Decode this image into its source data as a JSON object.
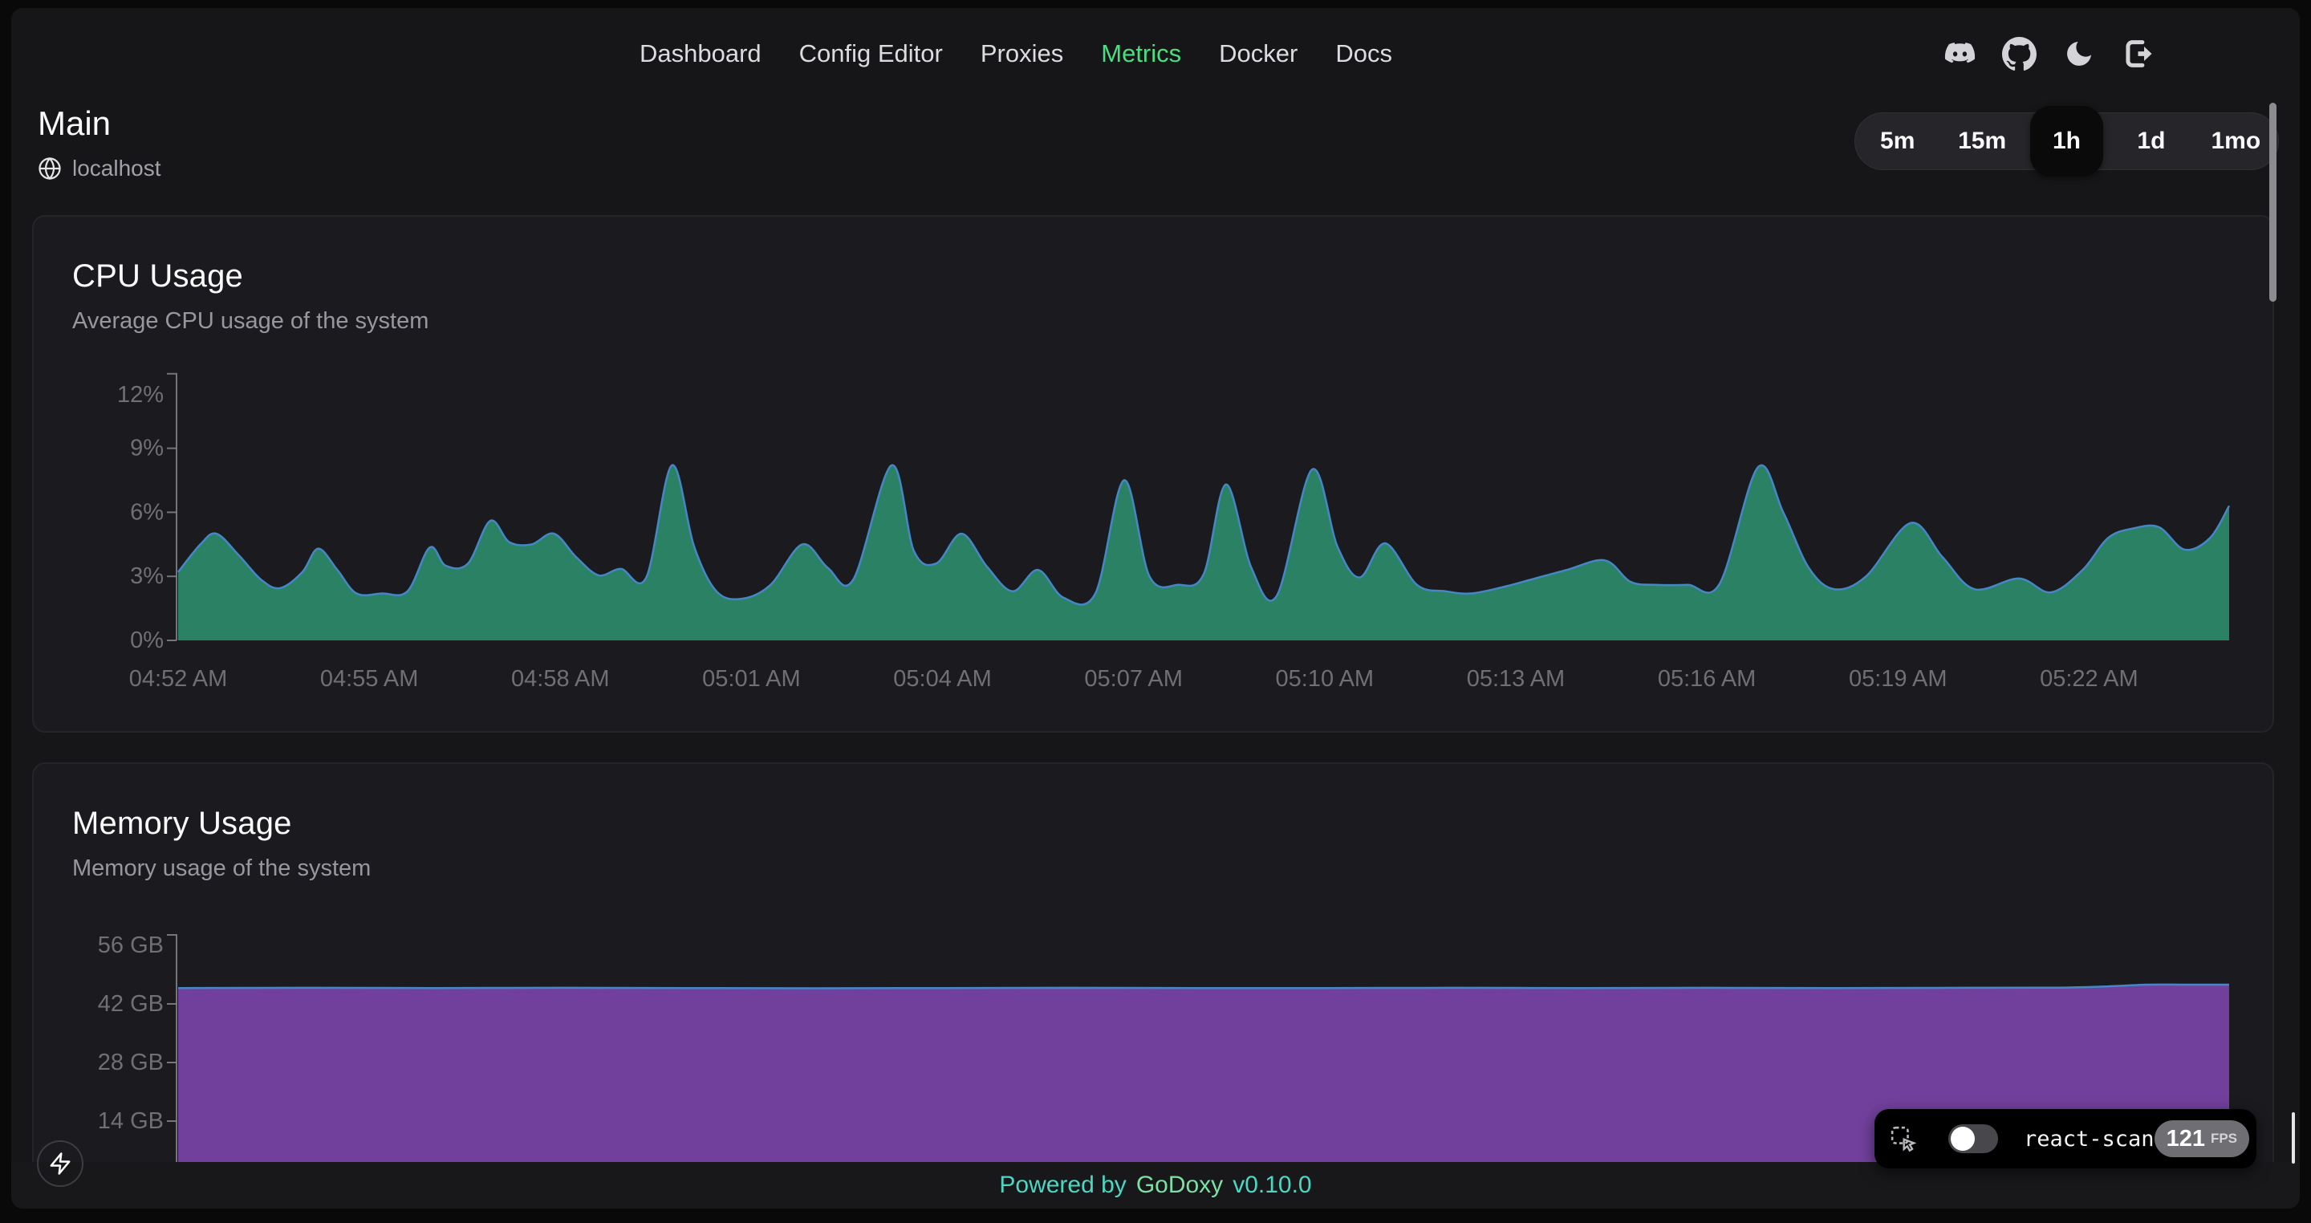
{
  "nav": {
    "items": [
      {
        "label": "Dashboard",
        "active": false
      },
      {
        "label": "Config Editor",
        "active": false
      },
      {
        "label": "Proxies",
        "active": false
      },
      {
        "label": "Metrics",
        "active": true
      },
      {
        "label": "Docker",
        "active": false
      },
      {
        "label": "Docs",
        "active": false
      }
    ],
    "icons": [
      "discord",
      "github",
      "theme-dark",
      "logout"
    ]
  },
  "header": {
    "title": "Main",
    "host": "localhost"
  },
  "time_range": {
    "options": [
      "5m",
      "15m",
      "1h",
      "1d",
      "1mo"
    ],
    "selected": "1h"
  },
  "accent_green": "#4ade80",
  "chart_data": [
    {
      "id": "cpu",
      "type": "area",
      "title": "CPU Usage",
      "subtitle": "Average CPU usage of the system",
      "ylim": [
        0,
        12.5
      ],
      "yticks": [
        0,
        3,
        6,
        9,
        12
      ],
      "ytick_labels": [
        "0%",
        "3%",
        "6%",
        "9%",
        "12%"
      ],
      "x_tick_minutes": [
        0,
        3,
        6,
        9,
        12,
        15,
        18,
        21,
        24,
        27,
        30
      ],
      "x_tick_labels": [
        "04:52 AM",
        "04:55 AM",
        "04:58 AM",
        "05:01 AM",
        "05:04 AM",
        "05:07 AM",
        "05:10 AM",
        "05:13 AM",
        "05:16 AM",
        "05:19 AM",
        "05:22 AM"
      ],
      "xlim": [
        0,
        32.2
      ],
      "x": [
        0,
        0.35,
        0.6,
        0.95,
        1.3,
        1.6,
        1.95,
        2.2,
        2.5,
        2.8,
        3.2,
        3.6,
        3.95,
        4.2,
        4.55,
        4.9,
        5.2,
        5.55,
        5.9,
        6.25,
        6.6,
        6.95,
        7.35,
        7.75,
        8.1,
        8.45,
        8.85,
        9.3,
        9.8,
        10.2,
        10.6,
        11.2,
        11.55,
        11.9,
        12.3,
        12.7,
        13.1,
        13.5,
        13.9,
        14.4,
        14.85,
        15.25,
        15.7,
        16.1,
        16.45,
        16.85,
        17.25,
        17.8,
        18.2,
        18.55,
        18.95,
        19.45,
        19.9,
        20.3,
        20.8,
        21.3,
        21.8,
        22.4,
        22.8,
        23.2,
        23.7,
        24.2,
        24.8,
        25.2,
        25.6,
        26.0,
        26.5,
        27.2,
        27.7,
        28.2,
        28.9,
        29.4,
        29.9,
        30.3,
        30.7,
        31.1,
        31.5,
        31.9,
        32.2
      ],
      "values": [
        3.2,
        4.5,
        5.0,
        4.0,
        2.85,
        2.45,
        3.2,
        4.3,
        3.3,
        2.2,
        2.2,
        2.3,
        4.35,
        3.5,
        3.6,
        5.6,
        4.6,
        4.5,
        5.0,
        3.9,
        3.05,
        3.35,
        2.95,
        8.2,
        4.4,
        2.3,
        1.95,
        2.6,
        4.5,
        3.4,
        2.85,
        8.2,
        4.2,
        3.6,
        5.0,
        3.45,
        2.3,
        3.3,
        2.0,
        2.2,
        7.5,
        3.0,
        2.6,
        3.1,
        7.3,
        3.4,
        2.1,
        8.0,
        4.4,
        2.95,
        4.55,
        2.6,
        2.3,
        2.2,
        2.5,
        2.9,
        3.3,
        3.75,
        2.75,
        2.6,
        2.6,
        2.65,
        8.1,
        6.0,
        3.4,
        2.4,
        3.0,
        5.5,
        3.9,
        2.4,
        2.9,
        2.25,
        3.3,
        4.8,
        5.25,
        5.3,
        4.25,
        4.8,
        6.3
      ],
      "fill": "#2a8164",
      "stroke": "#4587c6"
    },
    {
      "id": "memory",
      "type": "area",
      "title": "Memory Usage",
      "subtitle": "Memory usage of the system",
      "ylim": [
        0,
        58.5
      ],
      "yticks": [
        14,
        28,
        42,
        56
      ],
      "ytick_labels": [
        "14 GB",
        "28 GB",
        "42 GB",
        "56 GB"
      ],
      "x_tick_minutes": [],
      "x_tick_labels": [],
      "xlim": [
        0,
        32.2
      ],
      "x": [
        0,
        2,
        4,
        6,
        8,
        10,
        12,
        14,
        16,
        18,
        20,
        22,
        24,
        26,
        28,
        29.5,
        30.3,
        30.9,
        31.5,
        32.2
      ],
      "values": [
        45.8,
        45.85,
        45.8,
        45.85,
        45.8,
        45.75,
        45.8,
        45.85,
        45.8,
        45.8,
        45.85,
        45.8,
        45.85,
        45.8,
        45.85,
        45.9,
        46.2,
        46.6,
        46.6,
        46.6
      ],
      "fill": "#71409c",
      "stroke": "#4587c6"
    }
  ],
  "footer": {
    "powered_by": "Powered by",
    "brand": "GoDoxy",
    "version": "v0.10.0"
  },
  "react_scan": {
    "label": "react-scan",
    "fps": "121",
    "fps_unit": "FPS"
  }
}
